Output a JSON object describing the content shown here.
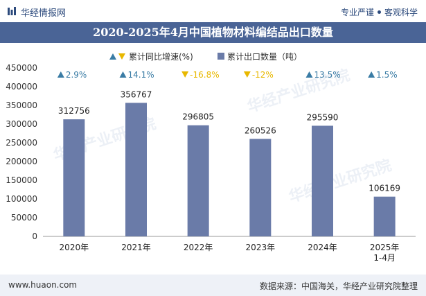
{
  "header": {
    "brand": "华经情报网",
    "slogan_left": "专业严谨",
    "slogan_right": "客观科学"
  },
  "footer": {
    "site": "www.huaon.com",
    "source": "数据来源：中国海关，华经产业研究院整理"
  },
  "watermark": "华经产业研究院",
  "colors": {
    "bar": "#6a7ba8",
    "up": "#3a7ca5",
    "down": "#e8b800",
    "title_bg": "#4a6496",
    "footer_bg": "#eef1f7"
  },
  "chart_data": {
    "type": "bar",
    "title": "2020-2025年4月中国植物材料编结品出口数量",
    "categories": [
      "2020年",
      "2021年",
      "2022年",
      "2023年",
      "2024年",
      "2025年\n1-4月"
    ],
    "series": [
      {
        "name": "累计出口数量（吨）",
        "values": [
          312756,
          356767,
          296805,
          260526,
          295590,
          106169
        ]
      }
    ],
    "growth": {
      "name": "累计同比增速(%)",
      "values": [
        2.9,
        14.1,
        -16.8,
        -12,
        13.5,
        1.5
      ],
      "labels": [
        "2.9%",
        "14.1%",
        "-16.8%",
        "-12%",
        "13.5%",
        "1.5%"
      ]
    },
    "yticks": [
      0,
      50000,
      100000,
      150000,
      200000,
      250000,
      300000,
      350000,
      400000,
      450000
    ],
    "ylim": [
      0,
      450000
    ],
    "xlabel": "",
    "ylabel": "",
    "legend": "top-center",
    "grid": false
  }
}
